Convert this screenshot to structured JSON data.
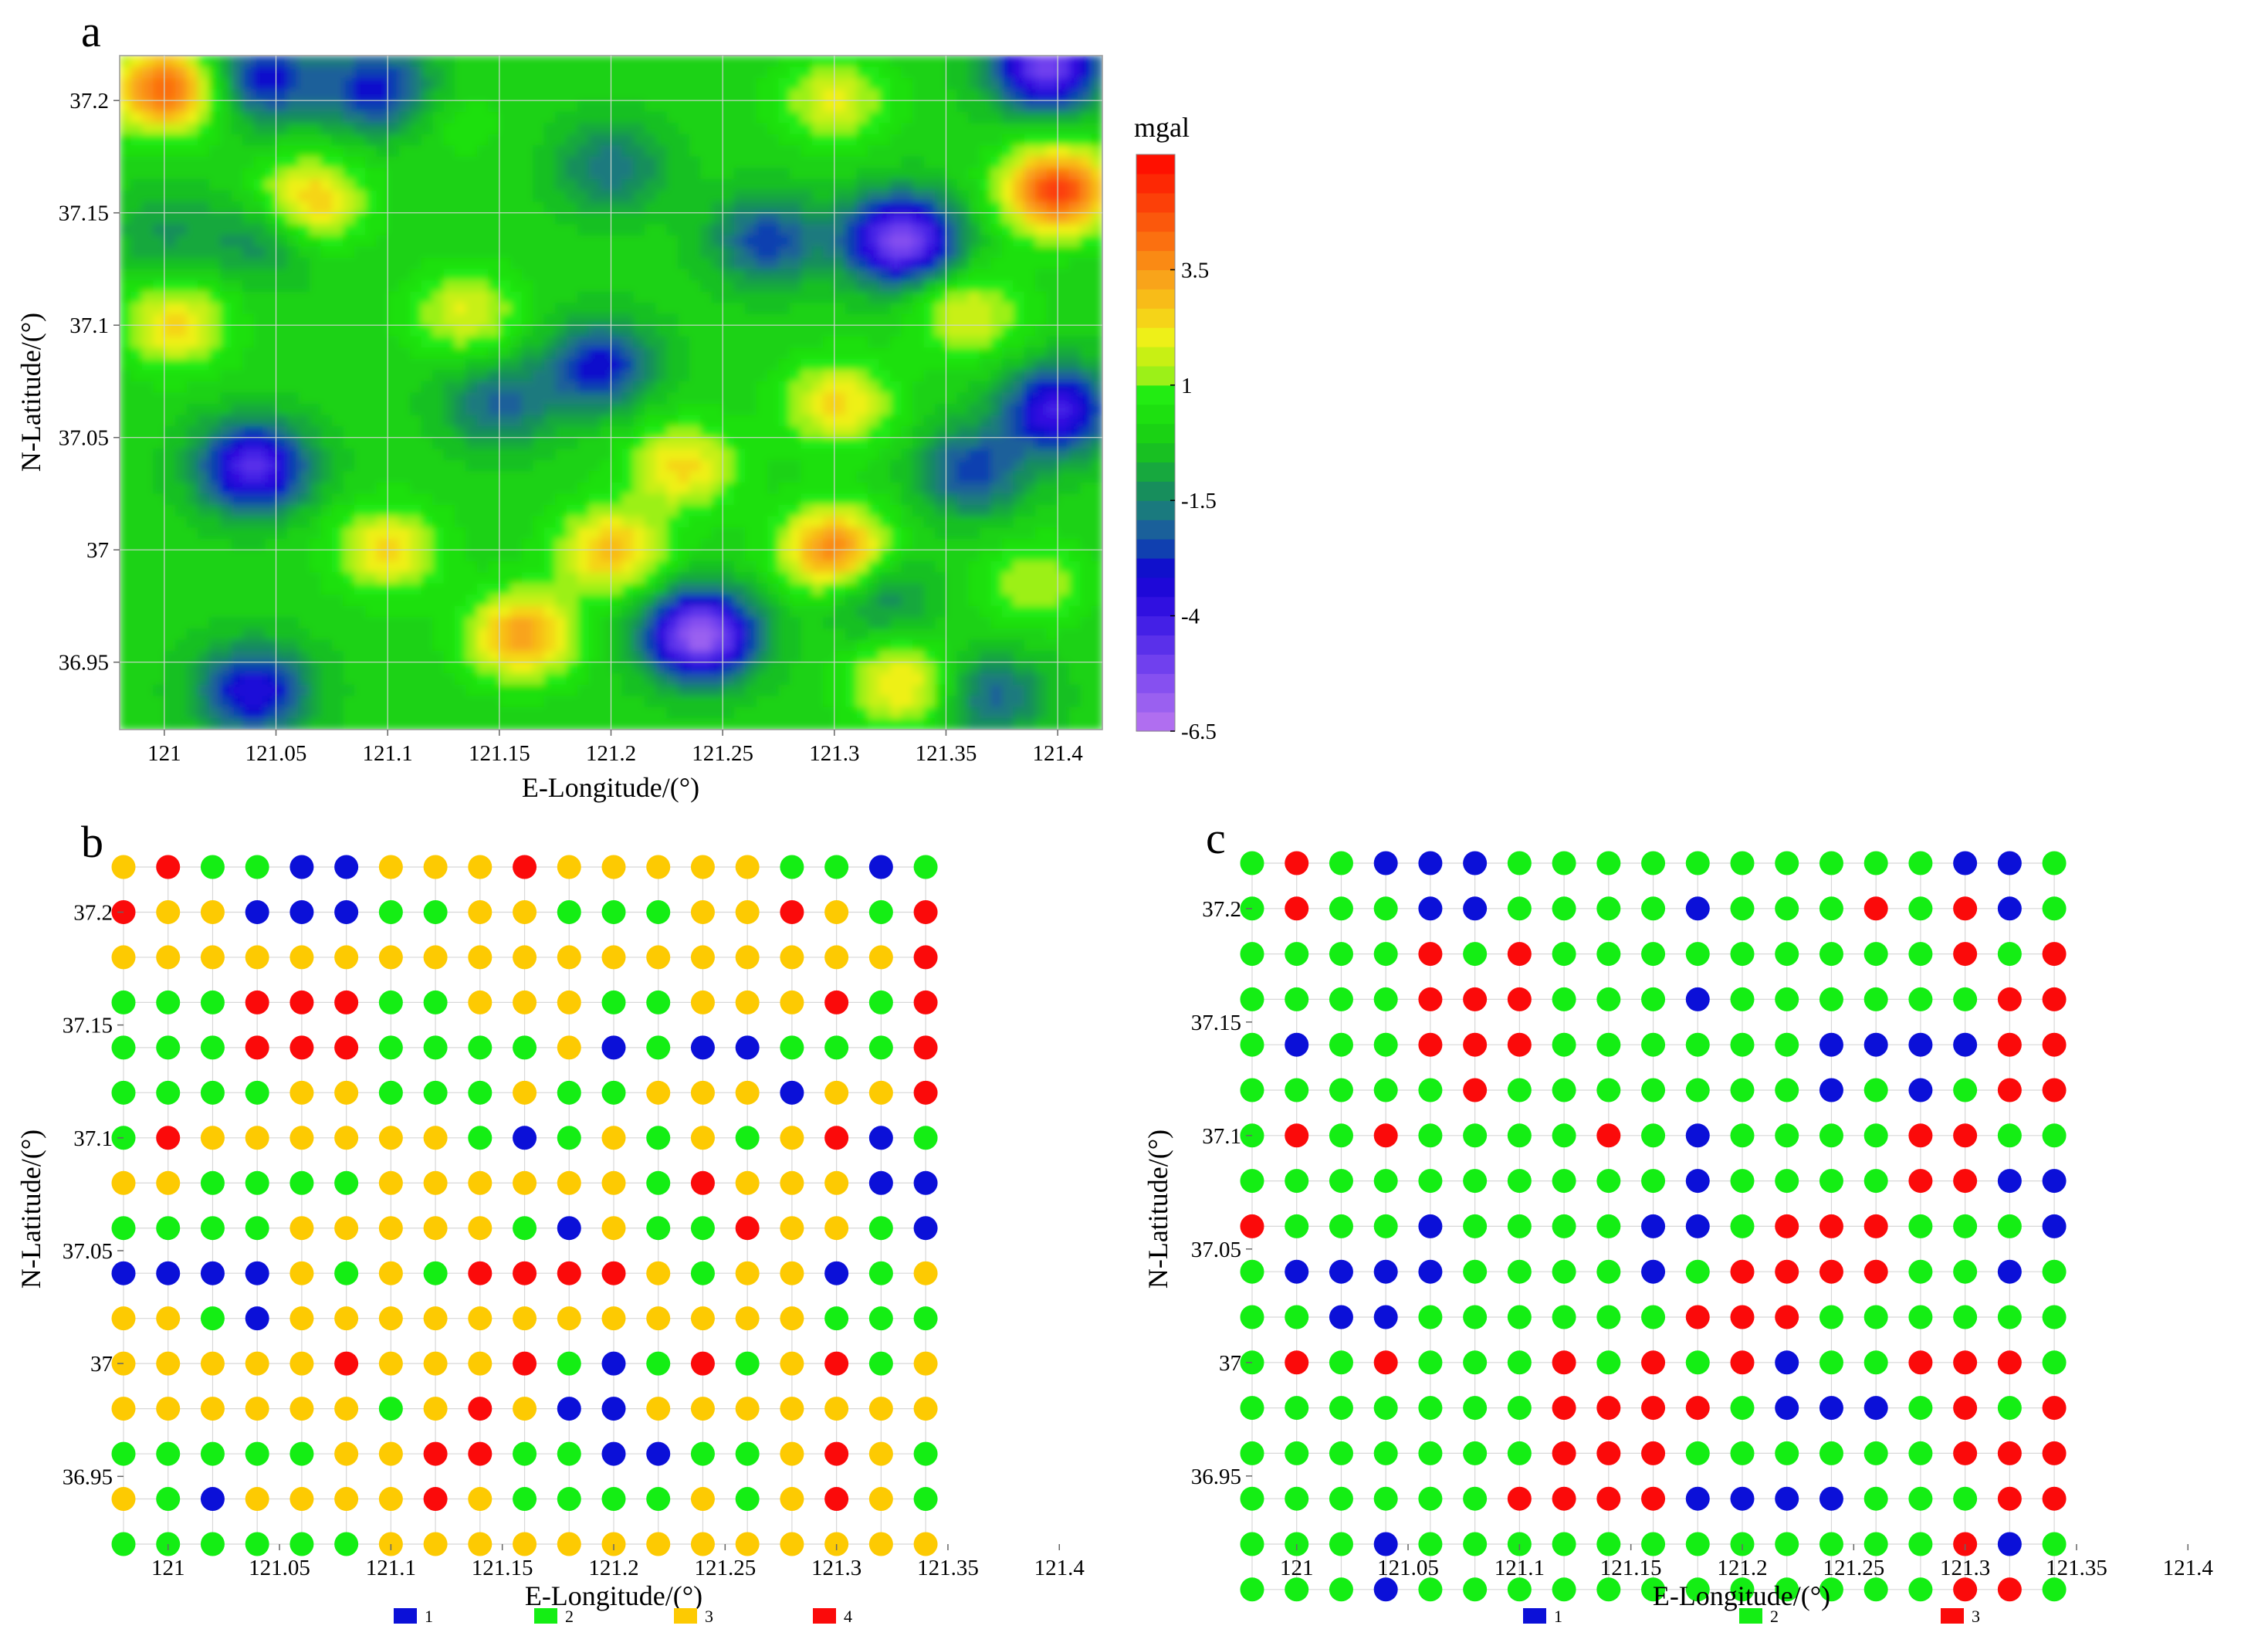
{
  "panels": {
    "a": {
      "letter": "a",
      "type": "heatmap",
      "xlabel": "E-Longitude/(°)",
      "ylabel": "N-Latitude/(°)",
      "xlim": [
        120.98,
        121.42
      ],
      "ylim": [
        36.92,
        37.22
      ],
      "xticks": [
        121,
        121.05,
        121.1,
        121.15,
        121.2,
        121.25,
        121.3,
        121.35,
        121.4
      ],
      "xtick_labels": [
        "121",
        "121.05",
        "121.1",
        "121.15",
        "121.2",
        "121.25",
        "121.3",
        "121.35",
        "121.4"
      ],
      "yticks": [
        36.95,
        37,
        37.05,
        37.1,
        37.15,
        37.2
      ],
      "ytick_labels": [
        "36.95",
        "37",
        "37.05",
        "37.1",
        "37.15",
        "37.2"
      ],
      "grid": true,
      "colorbar": {
        "title": "mgal",
        "range": [
          -6.5,
          6
        ],
        "ticks": [
          3.5,
          1,
          -1.5,
          -4,
          -6.5
        ],
        "tick_labels": [
          "3.5",
          "1",
          "-1.5",
          "-4",
          "-6.5"
        ],
        "colors": [
          "#b06ef0",
          "#9a60f0",
          "#8650f0",
          "#7040ee",
          "#5a30ea",
          "#4420e6",
          "#3010e0",
          "#1e08d8",
          "#1010cc",
          "#1040b0",
          "#1a609a",
          "#1a7a7e",
          "#178e5c",
          "#17a83e",
          "#18c022",
          "#1ad214",
          "#1de010",
          "#22ec12",
          "#9cf018",
          "#c8f014",
          "#eef018",
          "#f5d418",
          "#f8bc18",
          "#f9a41a",
          "#fa8a14",
          "#fb7010",
          "#fb580c",
          "#fc4008",
          "#fd2804",
          "#ff1000"
        ]
      },
      "features": [
        {
          "lon": 121.0,
          "lat": 37.205,
          "value": 4.5
        },
        {
          "lon": 121.065,
          "lat": 37.155,
          "value": 3.0
        },
        {
          "lon": 121.13,
          "lat": 37.19,
          "value": 0.5
        },
        {
          "lon": 121.045,
          "lat": 37.21,
          "value": -3.0
        },
        {
          "lon": 121.095,
          "lat": 37.205,
          "value": -3.0
        },
        {
          "lon": 121.04,
          "lat": 37.037,
          "value": -4.5
        },
        {
          "lon": 121.04,
          "lat": 36.937,
          "value": -3.5
        },
        {
          "lon": 121.16,
          "lat": 36.962,
          "value": 3.5
        },
        {
          "lon": 121.24,
          "lat": 36.962,
          "value": -6.0
        },
        {
          "lon": 121.33,
          "lat": 37.138,
          "value": -5.5
        },
        {
          "lon": 121.27,
          "lat": 37.138,
          "value": -2.5
        },
        {
          "lon": 121.395,
          "lat": 37.215,
          "value": -5.0
        },
        {
          "lon": 121.4,
          "lat": 37.16,
          "value": 5.0
        },
        {
          "lon": 121.4,
          "lat": 37.062,
          "value": -4.0
        },
        {
          "lon": 121.362,
          "lat": 37.035,
          "value": -2.5
        },
        {
          "lon": 121.3,
          "lat": 37.0,
          "value": 4.0
        },
        {
          "lon": 121.302,
          "lat": 37.065,
          "value": 2.5
        },
        {
          "lon": 121.232,
          "lat": 37.037,
          "value": 2.5
        },
        {
          "lon": 121.2,
          "lat": 37.0,
          "value": 3.0
        },
        {
          "lon": 121.195,
          "lat": 37.082,
          "value": -3.0
        },
        {
          "lon": 121.15,
          "lat": 37.065,
          "value": -2.0
        },
        {
          "lon": 121.2,
          "lat": 37.17,
          "value": -1.8
        },
        {
          "lon": 121.3,
          "lat": 37.2,
          "value": 2.0
        },
        {
          "lon": 121.36,
          "lat": 37.105,
          "value": 2.0
        },
        {
          "lon": 121.39,
          "lat": 36.985,
          "value": 1.5
        },
        {
          "lon": 121.33,
          "lat": 36.94,
          "value": 2.5
        },
        {
          "lon": 121.37,
          "lat": 36.935,
          "value": -2.0
        },
        {
          "lon": 121.1,
          "lat": 37.0,
          "value": 2.5
        },
        {
          "lon": 121.005,
          "lat": 37.1,
          "value": 2.5
        },
        {
          "lon": 121.135,
          "lat": 37.105,
          "value": 2.0
        },
        {
          "lon": 121.045,
          "lat": 37.14,
          "value": -1.5
        },
        {
          "lon": 121.0,
          "lat": 37.14,
          "value": -1.0
        },
        {
          "lon": 121.32,
          "lat": 36.98,
          "value": -1.5
        }
      ]
    },
    "b": {
      "letter": "b",
      "type": "scatter",
      "xlabel": "E-Longitude/(°)",
      "ylabel": "N-Latitude/(°)",
      "xlim": [
        120.98,
        121.42
      ],
      "ylim": [
        36.92,
        37.22
      ],
      "xticks": [
        121,
        121.05,
        121.1,
        121.15,
        121.2,
        121.25,
        121.3,
        121.35,
        121.4
      ],
      "xtick_labels": [
        "121",
        "121.05",
        "121.1",
        "121.15",
        "121.2",
        "121.25",
        "121.3",
        "121.35",
        "121.4"
      ],
      "yticks": [
        36.95,
        37,
        37.05,
        37.1,
        37.15,
        37.2
      ],
      "ytick_labels": [
        "36.95",
        "37",
        "37.05",
        "37.1",
        "37.15",
        "37.2"
      ],
      "lon_start": 120.98,
      "lon_step": 0.02,
      "lat_start": 37.22,
      "lat_step": -0.02,
      "classes": [
        {
          "label": "1",
          "color": "#0b10d8"
        },
        {
          "label": "2",
          "color": "#14ee14"
        },
        {
          "label": "3",
          "color": "#fdca02"
        },
        {
          "label": "4",
          "color": "#fb0a0a"
        }
      ],
      "grid": [
        "3422113334333332212",
        "4331112233222334324",
        "3333333333333333334",
        "2224442233322333424",
        "2224442222312112224",
        "2222332223223331334",
        "2433333321232323412",
        "3322223333332433311",
        "2222333332132243321",
        "1111323244443233123",
        "3321333333333333222",
        "3333343334212423423",
        "3333332343113333333",
        "2222233442211223432",
        "3213333432222323432",
        "2222223333333333333"
      ]
    },
    "c": {
      "letter": "c",
      "type": "scatter",
      "xlabel": "E-Longitude/(°)",
      "ylabel": "N-Latitude/(°)",
      "xlim": [
        120.98,
        121.42
      ],
      "ylim": [
        36.92,
        37.22
      ],
      "xticks": [
        121,
        121.05,
        121.1,
        121.15,
        121.2,
        121.25,
        121.3,
        121.35,
        121.4
      ],
      "xtick_labels": [
        "121",
        "121.05",
        "121.1",
        "121.15",
        "121.2",
        "121.25",
        "121.3",
        "121.35",
        "121.4"
      ],
      "yticks": [
        36.95,
        37,
        37.05,
        37.1,
        37.15,
        37.2
      ],
      "ytick_labels": [
        "36.95",
        "37",
        "37.05",
        "37.1",
        "37.15",
        "37.2"
      ],
      "lon_start": 120.98,
      "lon_step": 0.02,
      "lat_start": 37.22,
      "lat_step": -0.02,
      "classes": [
        {
          "label": "1",
          "color": "#0b10d8"
        },
        {
          "label": "2",
          "color": "#14ee14"
        },
        {
          "label": "3",
          "color": "#fb0a0a"
        }
      ],
      "grid": [
        "2321112222222222112",
        "2322112222122232312",
        "2222323222222222323",
        "2222333222122222233",
        "2122333222222111133",
        "2222232222222121233",
        "2323222232122223322",
        "2222222222122223311",
        "3222122221123332221",
        "2111122221233332212",
        "2211222222333222222",
        "2323222323231223332",
        "2222222333321112323",
        "2222222333222222333",
        "2222223333111122233",
        "2221222222222222312",
        "2221222222222222332"
      ]
    }
  }
}
